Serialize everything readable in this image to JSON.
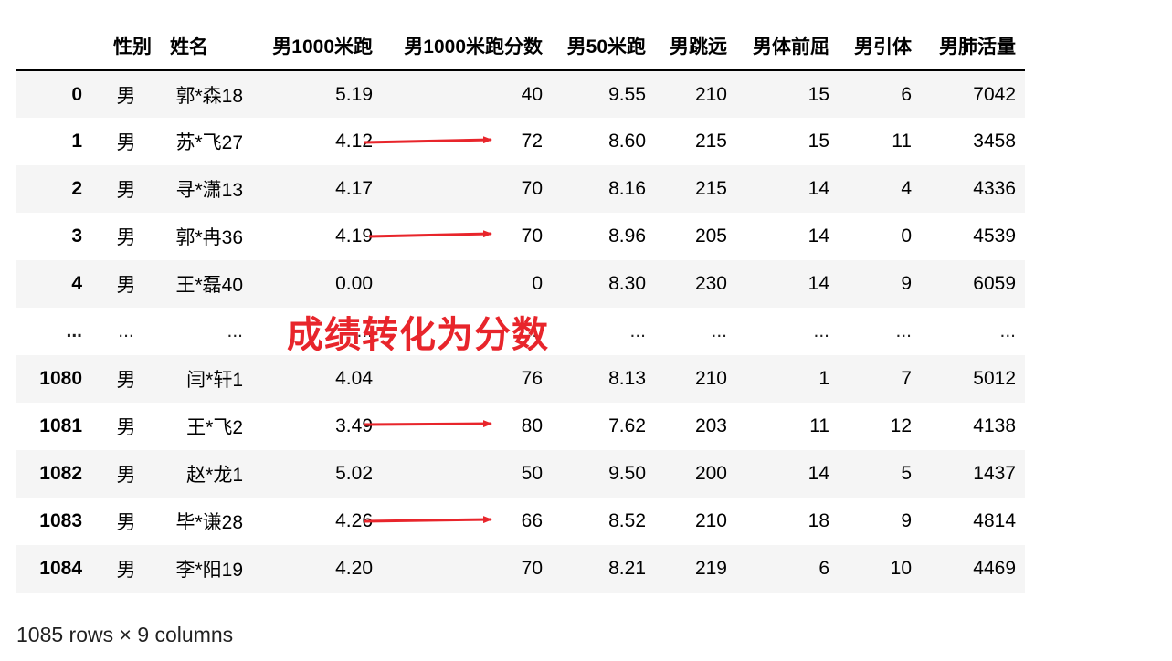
{
  "table": {
    "columns": [
      "",
      "性别",
      "姓名",
      "男1000米跑",
      "男1000米跑分数",
      "男50米跑",
      "男跳远",
      "男体前屈",
      "男引体",
      "男肺活量"
    ],
    "rows": [
      {
        "idx": "0",
        "cells": [
          "男",
          "郭*森18",
          "5.19",
          "40",
          "9.55",
          "210",
          "15",
          "6",
          "7042"
        ]
      },
      {
        "idx": "1",
        "cells": [
          "男",
          "苏*飞27",
          "4.12",
          "72",
          "8.60",
          "215",
          "15",
          "11",
          "3458"
        ]
      },
      {
        "idx": "2",
        "cells": [
          "男",
          "寻*潇13",
          "4.17",
          "70",
          "8.16",
          "215",
          "14",
          "4",
          "4336"
        ]
      },
      {
        "idx": "3",
        "cells": [
          "男",
          "郭*冉36",
          "4.19",
          "70",
          "8.96",
          "205",
          "14",
          "0",
          "4539"
        ]
      },
      {
        "idx": "4",
        "cells": [
          "男",
          "王*磊40",
          "0.00",
          "0",
          "8.30",
          "230",
          "14",
          "9",
          "6059"
        ]
      },
      {
        "idx": "...",
        "cells": [
          "...",
          "...",
          "...",
          "...",
          "...",
          "...",
          "...",
          "...",
          "..."
        ]
      },
      {
        "idx": "1080",
        "cells": [
          "男",
          "闫*轩1",
          "4.04",
          "76",
          "8.13",
          "210",
          "1",
          "7",
          "5012"
        ]
      },
      {
        "idx": "1081",
        "cells": [
          "男",
          "王*飞2",
          "3.49",
          "80",
          "7.62",
          "203",
          "11",
          "12",
          "4138"
        ]
      },
      {
        "idx": "1082",
        "cells": [
          "男",
          "赵*龙1",
          "5.02",
          "50",
          "9.50",
          "200",
          "14",
          "5",
          "1437"
        ]
      },
      {
        "idx": "1083",
        "cells": [
          "男",
          "毕*谦28",
          "4.26",
          "66",
          "8.52",
          "210",
          "18",
          "9",
          "4814"
        ]
      },
      {
        "idx": "1084",
        "cells": [
          "男",
          "李*阳19",
          "4.20",
          "70",
          "8.21",
          "219",
          "6",
          "10",
          "4469"
        ]
      }
    ]
  },
  "annotation": {
    "text": "成绩转化为分数",
    "color": "#e8252b"
  },
  "footer": "1085 rows × 9 columns"
}
